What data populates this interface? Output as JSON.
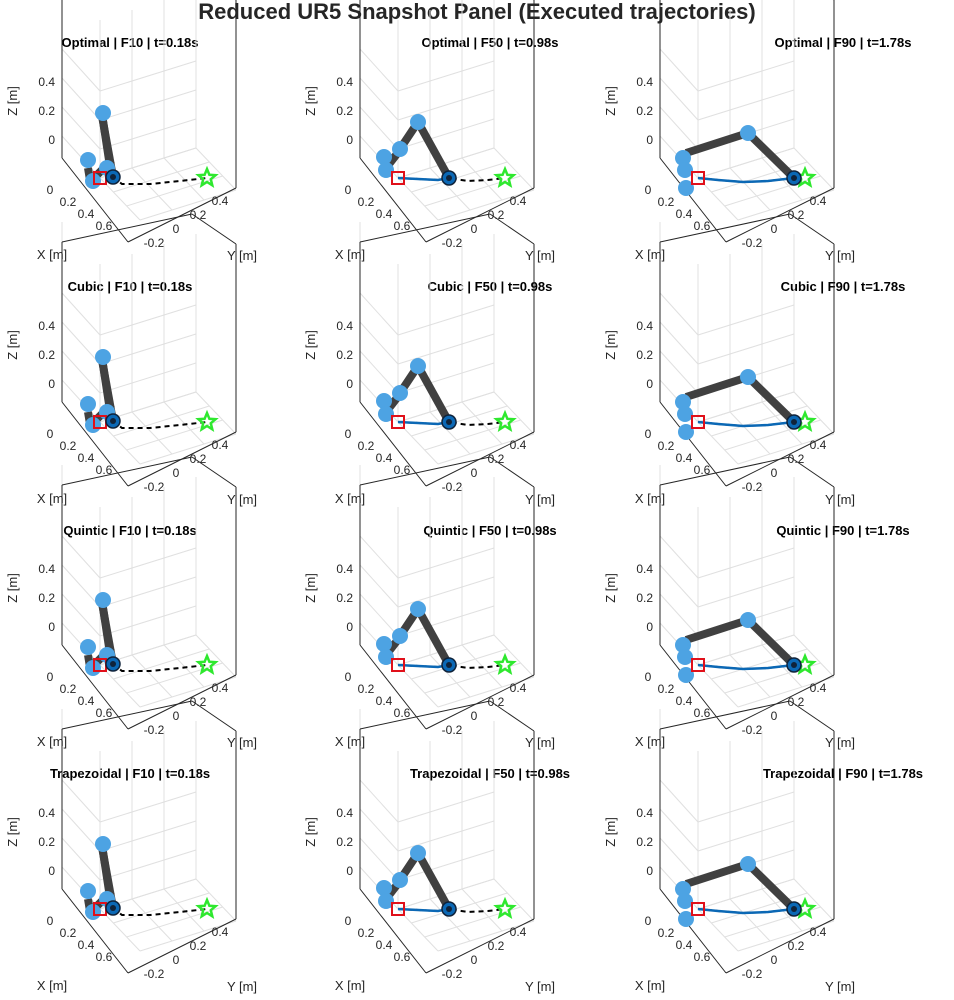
{
  "figure_title": "Reduced UR5 Snapshot Panel (Executed trajectories)",
  "colors": {
    "link": "#404040",
    "joint": "#4da3e3",
    "executed_path": "#0b68b5",
    "planned_path": "#000000",
    "start_marker": "#e0101a",
    "goal_marker": "#2ee82e"
  },
  "chart_data": [
    {
      "type": "scatter",
      "title": "Optimal | F10 | t=0.18s",
      "method": "Optimal",
      "frame": "F10",
      "time_s": 0.18,
      "pose": 0,
      "xlabel": "X [m]",
      "ylabel": "Y [m]",
      "zlabel": "Z [m]",
      "xticks": [
        "0",
        "0.2",
        "0.4",
        "0.6"
      ],
      "yticks": [
        "-0.2",
        "0",
        "0.2",
        "0.4"
      ],
      "zticks": [
        "0",
        "0.2",
        "0.4"
      ],
      "grid": true,
      "markers": [
        "start-square",
        "goal-star"
      ],
      "legend": "none"
    },
    {
      "type": "scatter",
      "title": "Optimal | F50 | t=0.98s",
      "method": "Optimal",
      "frame": "F50",
      "time_s": 0.98,
      "pose": 1,
      "xlabel": "X [m]",
      "ylabel": "Y [m]",
      "zlabel": "Z [m]",
      "xticks": [
        "0",
        "0.2",
        "0.4",
        "0.6"
      ],
      "yticks": [
        "-0.2",
        "0",
        "0.2",
        "0.4"
      ],
      "zticks": [
        "0",
        "0.2",
        "0.4"
      ],
      "grid": true,
      "markers": [
        "start-square",
        "goal-star"
      ],
      "legend": "none"
    },
    {
      "type": "scatter",
      "title": "Optimal | F90 | t=1.78s",
      "method": "Optimal",
      "frame": "F90",
      "time_s": 1.78,
      "pose": 2,
      "xlabel": "X [m]",
      "ylabel": "Y [m]",
      "zlabel": "Z [m]",
      "xticks": [
        "0",
        "0.2",
        "0.4",
        "0.6"
      ],
      "yticks": [
        "-0.2",
        "0",
        "0.2",
        "0.4"
      ],
      "zticks": [
        "0",
        "0.2",
        "0.4"
      ],
      "grid": true,
      "markers": [
        "start-square",
        "goal-star"
      ],
      "legend": "none"
    },
    {
      "type": "scatter",
      "title": "Cubic | F10 | t=0.18s",
      "method": "Cubic",
      "frame": "F10",
      "time_s": 0.18,
      "pose": 0,
      "xlabel": "X [m]",
      "ylabel": "Y [m]",
      "zlabel": "Z [m]",
      "xticks": [
        "0",
        "0.2",
        "0.4",
        "0.6"
      ],
      "yticks": [
        "-0.2",
        "0",
        "0.2",
        "0.4"
      ],
      "zticks": [
        "0",
        "0.2",
        "0.4"
      ],
      "grid": true,
      "markers": [
        "start-square",
        "goal-star"
      ],
      "legend": "none"
    },
    {
      "type": "scatter",
      "title": "Cubic | F50 | t=0.98s",
      "method": "Cubic",
      "frame": "F50",
      "time_s": 0.98,
      "pose": 1,
      "xlabel": "X [m]",
      "ylabel": "Y [m]",
      "zlabel": "Z [m]",
      "xticks": [
        "0",
        "0.2",
        "0.4",
        "0.6"
      ],
      "yticks": [
        "-0.2",
        "0",
        "0.2",
        "0.4"
      ],
      "zticks": [
        "0",
        "0.2",
        "0.4"
      ],
      "grid": true,
      "markers": [
        "start-square",
        "goal-star"
      ],
      "legend": "none"
    },
    {
      "type": "scatter",
      "title": "Cubic | F90 | t=1.78s",
      "method": "Cubic",
      "frame": "F90",
      "time_s": 1.78,
      "pose": 2,
      "xlabel": "X [m]",
      "ylabel": "Y [m]",
      "zlabel": "Z [m]",
      "xticks": [
        "0",
        "0.2",
        "0.4",
        "0.6"
      ],
      "yticks": [
        "-0.2",
        "0",
        "0.2",
        "0.4"
      ],
      "zticks": [
        "0",
        "0.2",
        "0.4"
      ],
      "grid": true,
      "markers": [
        "start-square",
        "goal-star"
      ],
      "legend": "none"
    },
    {
      "type": "scatter",
      "title": "Quintic | F10 | t=0.18s",
      "method": "Quintic",
      "frame": "F10",
      "time_s": 0.18,
      "pose": 0,
      "xlabel": "X [m]",
      "ylabel": "Y [m]",
      "zlabel": "Z [m]",
      "xticks": [
        "0",
        "0.2",
        "0.4",
        "0.6"
      ],
      "yticks": [
        "-0.2",
        "0",
        "0.2",
        "0.4"
      ],
      "zticks": [
        "0",
        "0.2",
        "0.4"
      ],
      "grid": true,
      "markers": [
        "start-square",
        "goal-star"
      ],
      "legend": "none"
    },
    {
      "type": "scatter",
      "title": "Quintic | F50 | t=0.98s",
      "method": "Quintic",
      "frame": "F50",
      "time_s": 0.98,
      "pose": 1,
      "xlabel": "X [m]",
      "ylabel": "Y [m]",
      "zlabel": "Z [m]",
      "xticks": [
        "0",
        "0.2",
        "0.4",
        "0.6"
      ],
      "yticks": [
        "-0.2",
        "0",
        "0.2",
        "0.4"
      ],
      "zticks": [
        "0",
        "0.2",
        "0.4"
      ],
      "grid": true,
      "markers": [
        "start-square",
        "goal-star"
      ],
      "legend": "none"
    },
    {
      "type": "scatter",
      "title": "Quintic | F90 | t=1.78s",
      "method": "Quintic",
      "frame": "F90",
      "time_s": 1.78,
      "pose": 2,
      "xlabel": "X [m]",
      "ylabel": "Y [m]",
      "zlabel": "Z [m]",
      "xticks": [
        "0",
        "0.2",
        "0.4",
        "0.6"
      ],
      "yticks": [
        "-0.2",
        "0",
        "0.2",
        "0.4"
      ],
      "zticks": [
        "0",
        "0.2",
        "0.4"
      ],
      "grid": true,
      "markers": [
        "start-square",
        "goal-star"
      ],
      "legend": "none"
    },
    {
      "type": "scatter",
      "title": "Trapezoidal | F10 | t=0.18s",
      "method": "Trapezoidal",
      "frame": "F10",
      "time_s": 0.18,
      "pose": 0,
      "xlabel": "X [m]",
      "ylabel": "Y [m]",
      "zlabel": "Z [m]",
      "xticks": [
        "0",
        "0.2",
        "0.4",
        "0.6"
      ],
      "yticks": [
        "-0.2",
        "0",
        "0.2",
        "0.4"
      ],
      "zticks": [
        "0",
        "0.2",
        "0.4"
      ],
      "grid": true,
      "markers": [
        "start-square",
        "goal-star"
      ],
      "legend": "none"
    },
    {
      "type": "scatter",
      "title": "Trapezoidal | F50 | t=0.98s",
      "method": "Trapezoidal",
      "frame": "F50",
      "time_s": 0.98,
      "pose": 1,
      "xlabel": "X [m]",
      "ylabel": "Y [m]",
      "zlabel": "Z [m]",
      "xticks": [
        "0",
        "0.2",
        "0.4",
        "0.6"
      ],
      "yticks": [
        "-0.2",
        "0",
        "0.2",
        "0.4"
      ],
      "zticks": [
        "0",
        "0.2",
        "0.4"
      ],
      "grid": true,
      "markers": [
        "start-square",
        "goal-star"
      ],
      "legend": "none"
    },
    {
      "type": "scatter",
      "title": "Trapezoidal | F90 | t=1.78s",
      "method": "Trapezoidal",
      "frame": "F90",
      "time_s": 1.78,
      "pose": 2,
      "xlabel": "X [m]",
      "ylabel": "Y [m]",
      "zlabel": "Z [m]",
      "xticks": [
        "0",
        "0.2",
        "0.4",
        "0.6"
      ],
      "yticks": [
        "-0.2",
        "0",
        "0.2",
        "0.4"
      ],
      "zticks": [
        "0",
        "0.2",
        "0.4"
      ],
      "grid": true,
      "markers": [
        "start-square",
        "goal-star"
      ],
      "legend": "none"
    }
  ]
}
